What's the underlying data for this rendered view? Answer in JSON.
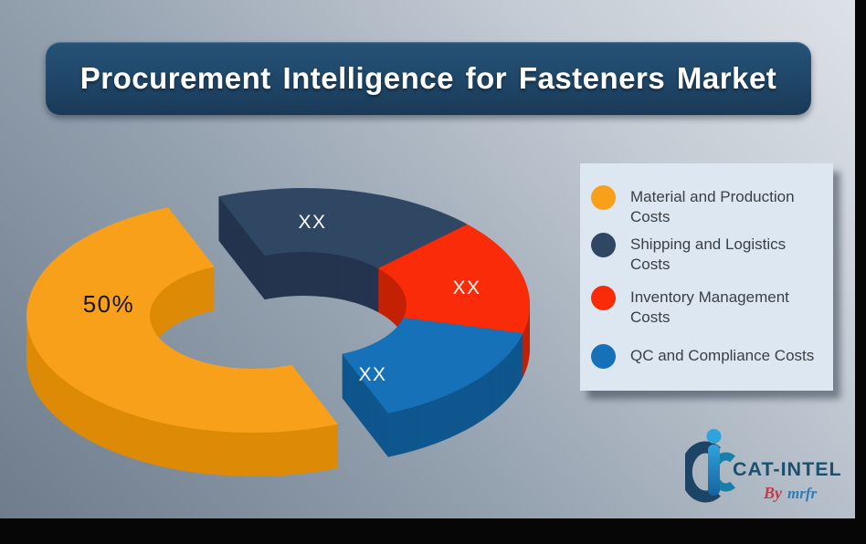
{
  "title": {
    "text": "Procurement Intelligence for Fasteners Market"
  },
  "chart_data": {
    "type": "pie",
    "variant": "3d-exploded-donut",
    "title": "Procurement Intelligence for Fasteners Market",
    "legend_position": "right",
    "grid": false,
    "slices": [
      {
        "label": "Material and Production Costs",
        "value_label": "50%",
        "value_pct": 50,
        "exploded": true,
        "color": "#F9A01B",
        "depth_color": "#DD8A06",
        "text_color": "#161616"
      },
      {
        "label": "Shipping and Logistics Costs",
        "value_label": "XX",
        "value_pct": null,
        "value_pct_est": 19,
        "exploded": false,
        "color": "#2F4763",
        "depth_color": "#24344F",
        "text_color": "#FFFFFF"
      },
      {
        "label": "Inventory Management Costs",
        "value_label": "XX",
        "value_pct": null,
        "value_pct_est": 16,
        "exploded": false,
        "color": "#F92B08",
        "depth_color": "#C42104",
        "text_color": "#FFFFFF"
      },
      {
        "label": "QC and Compliance Costs",
        "value_label": "XX",
        "value_pct": null,
        "value_pct_est": 15,
        "exploded": false,
        "color": "#1671B9",
        "depth_color": "#0F568E",
        "text_color": "#FFFFFF"
      }
    ]
  },
  "logo": {
    "brand": "CAT-INTEL",
    "byline_prefix": "By",
    "byline_brand": "mrfr",
    "brand_color": "#1D506F",
    "byline_prefix_color": "#C23B47",
    "byline_brand_color": "#2E7CB8"
  }
}
